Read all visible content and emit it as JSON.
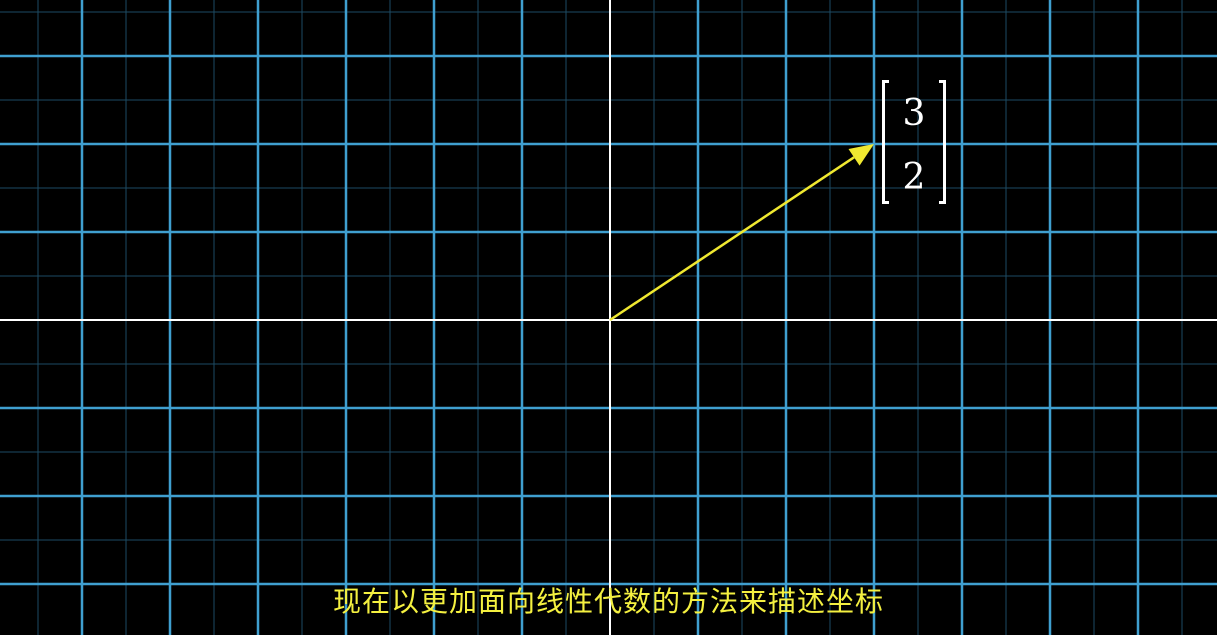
{
  "plane": {
    "background": "#000000",
    "grid_major_color": "#3f9fd0",
    "grid_minor_color": "#1d4a63",
    "axis_color": "#ffffff",
    "x_range": [
      -7,
      7
    ],
    "y_range": [
      -3,
      3.5
    ]
  },
  "vector": {
    "x": 3,
    "y": 2,
    "color": "#f0e830",
    "entries": [
      "3",
      "2"
    ]
  },
  "subtitle": "现在以更加面向线性代数的方法来描述坐标"
}
